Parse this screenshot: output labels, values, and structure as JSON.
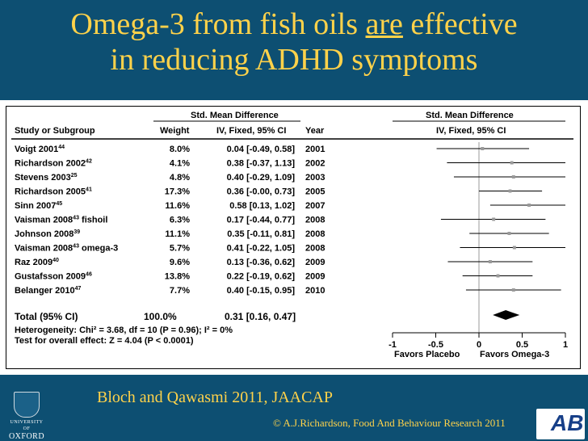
{
  "slide": {
    "title_part1": "Omega-3 from fish oils ",
    "title_emph": "are",
    "title_part2": " effective",
    "title_line2": "in reducing ADHD symptoms",
    "caption": "Bloch and Qawasmi 2011, JAACAP",
    "copyright": "© A.J.Richardson, Food And Behaviour Research 2011",
    "logo_university": "UNIVERSITY OF",
    "logo_oxford": "OXFORD",
    "colors": {
      "background": "#0d4f72",
      "title": "#ffd24a",
      "panel": "#ffffff"
    }
  },
  "chart_data": {
    "type": "forest",
    "headers": {
      "study": "Study or Subgroup",
      "weight": "Weight",
      "smd_top": "Std. Mean Difference",
      "smd_sub": "IV, Fixed, 95% CI",
      "year": "Year",
      "plot_top": "Std. Mean Difference",
      "plot_sub": "IV, Fixed, 95% CI"
    },
    "studies": [
      {
        "name": "Voigt 2001",
        "ref": "44",
        "suffix": "",
        "weight": "8.0%",
        "ci_text": "0.04 [-0.49, 0.58]",
        "year": "2001",
        "est": 0.04,
        "lo": -0.49,
        "hi": 0.58
      },
      {
        "name": "Richardson 2002",
        "ref": "42",
        "suffix": "",
        "weight": "4.1%",
        "ci_text": "0.38 [-0.37, 1.13]",
        "year": "2002",
        "est": 0.38,
        "lo": -0.37,
        "hi": 1.13
      },
      {
        "name": "Stevens 2003",
        "ref": "25",
        "suffix": "",
        "weight": "4.8%",
        "ci_text": "0.40 [-0.29, 1.09]",
        "year": "2003",
        "est": 0.4,
        "lo": -0.29,
        "hi": 1.09
      },
      {
        "name": "Richardson 2005",
        "ref": "41",
        "suffix": "",
        "weight": "17.3%",
        "ci_text": "0.36 [-0.00, 0.73]",
        "year": "2005",
        "est": 0.36,
        "lo": -0.0,
        "hi": 0.73
      },
      {
        "name": "Sinn 2007",
        "ref": "45",
        "suffix": "",
        "weight": "11.6%",
        "ci_text": "0.58 [0.13, 1.02]",
        "year": "2007",
        "est": 0.58,
        "lo": 0.13,
        "hi": 1.02
      },
      {
        "name": "Vaisman 2008",
        "ref": "43",
        "suffix": " fishoil",
        "weight": "6.3%",
        "ci_text": "0.17 [-0.44, 0.77]",
        "year": "2008",
        "est": 0.17,
        "lo": -0.44,
        "hi": 0.77
      },
      {
        "name": "Johnson 2008",
        "ref": "39",
        "suffix": "",
        "weight": "11.1%",
        "ci_text": "0.35 [-0.11, 0.81]",
        "year": "2008",
        "est": 0.35,
        "lo": -0.11,
        "hi": 0.81
      },
      {
        "name": "Vaisman 2008",
        "ref": "43",
        "suffix": " omega-3",
        "weight": "5.7%",
        "ci_text": "0.41 [-0.22, 1.05]",
        "year": "2008",
        "est": 0.41,
        "lo": -0.22,
        "hi": 1.05
      },
      {
        "name": "Raz 2009",
        "ref": "40",
        "suffix": "",
        "weight": "9.6%",
        "ci_text": "0.13 [-0.36, 0.62]",
        "year": "2009",
        "est": 0.13,
        "lo": -0.36,
        "hi": 0.62
      },
      {
        "name": "Gustafsson 2009",
        "ref": "46",
        "suffix": "",
        "weight": "13.8%",
        "ci_text": "0.22 [-0.19, 0.62]",
        "year": "2009",
        "est": 0.22,
        "lo": -0.19,
        "hi": 0.62
      },
      {
        "name": "Belanger 2010",
        "ref": "47",
        "suffix": "",
        "weight": "7.7%",
        "ci_text": "0.40 [-0.15, 0.95]",
        "year": "2010",
        "est": 0.4,
        "lo": -0.15,
        "hi": 0.95
      }
    ],
    "total": {
      "label": "Total (95% CI)",
      "weight": "100.0%",
      "ci_text": "0.31 [0.16, 0.47]",
      "est": 0.31,
      "lo": 0.16,
      "hi": 0.47
    },
    "heterogeneity_text": "Heterogeneity: Chi² = 3.68, df = 10 (P = 0.96); I² = 0%",
    "overall_effect_text": "Test for overall effect: Z = 4.04 (P < 0.0001)",
    "x_ticks": [
      "-1",
      "-0.5",
      "0",
      "0.5",
      "1"
    ],
    "xlim": [
      -1,
      1
    ],
    "favors_left": "Favors Placebo",
    "favors_right": "Favors Omega-3"
  }
}
